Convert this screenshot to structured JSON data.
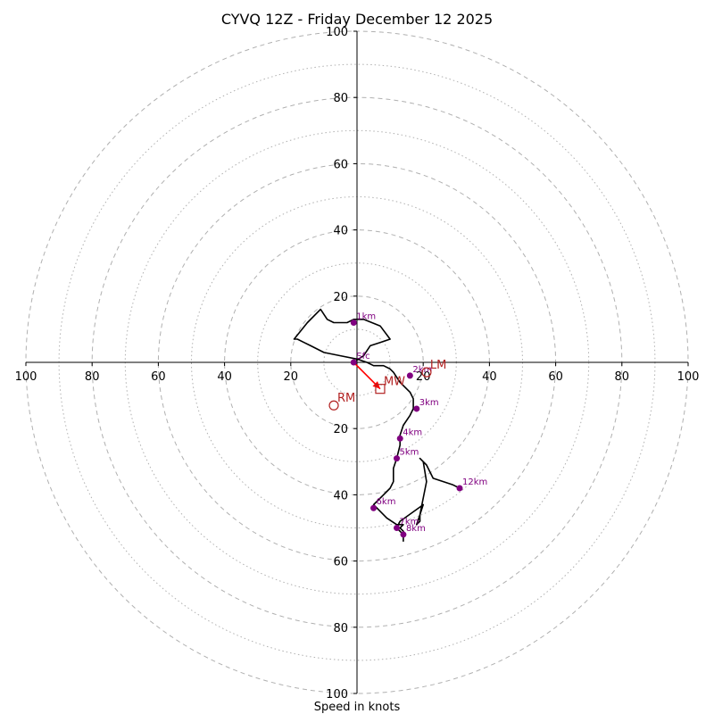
{
  "chart_data": {
    "type": "hodograph",
    "title": "CYVQ 12Z - Friday December 12 2025",
    "xlabel": "Speed in knots",
    "range": [
      -100,
      100
    ],
    "ring_major": [
      20,
      40,
      60,
      80,
      100
    ],
    "ring_minor": [
      10,
      30,
      50,
      70,
      90
    ],
    "x_ticks": [
      {
        "v": -100,
        "label": "100"
      },
      {
        "v": -80,
        "label": "80"
      },
      {
        "v": -60,
        "label": "60"
      },
      {
        "v": -40,
        "label": "40"
      },
      {
        "v": -20,
        "label": "20"
      },
      {
        "v": 20,
        "label": "20"
      },
      {
        "v": 40,
        "label": "40"
      },
      {
        "v": 60,
        "label": "60"
      },
      {
        "v": 80,
        "label": "80"
      },
      {
        "v": 100,
        "label": "100"
      }
    ],
    "y_ticks": [
      {
        "v": 100,
        "label": "100"
      },
      {
        "v": 80,
        "label": "80"
      },
      {
        "v": 60,
        "label": "60"
      },
      {
        "v": 40,
        "label": "40"
      },
      {
        "v": 20,
        "label": "20"
      },
      {
        "v": -20,
        "label": "20"
      },
      {
        "v": -40,
        "label": "40"
      },
      {
        "v": -60,
        "label": "60"
      },
      {
        "v": -80,
        "label": "80"
      },
      {
        "v": -100,
        "label": "100"
      }
    ],
    "trace": [
      [
        -1,
        0
      ],
      [
        2,
        2
      ],
      [
        4,
        5
      ],
      [
        7,
        6
      ],
      [
        10,
        7
      ],
      [
        7,
        11
      ],
      [
        2,
        13
      ],
      [
        -1,
        13
      ],
      [
        -3,
        12
      ],
      [
        -5,
        12
      ],
      [
        -7,
        12
      ],
      [
        -9,
        13
      ],
      [
        -11,
        16
      ],
      [
        -15,
        12
      ],
      [
        -19,
        7
      ],
      [
        -18,
        7
      ],
      [
        -16,
        6
      ],
      [
        -14,
        5
      ],
      [
        -10,
        3
      ],
      [
        -5,
        2
      ],
      [
        0,
        1
      ],
      [
        3,
        0
      ],
      [
        5,
        -1
      ],
      [
        8,
        -1
      ],
      [
        10,
        -2
      ],
      [
        11,
        -3
      ],
      [
        13,
        -6
      ],
      [
        15,
        -8
      ],
      [
        16,
        -9
      ],
      [
        17,
        -11
      ],
      [
        17,
        -12
      ],
      [
        17,
        -14
      ],
      [
        16,
        -16
      ],
      [
        14,
        -19
      ],
      [
        13,
        -22
      ],
      [
        13,
        -25
      ],
      [
        12,
        -29
      ],
      [
        11,
        -32
      ],
      [
        11,
        -36
      ],
      [
        10,
        -38
      ],
      [
        8,
        -40
      ],
      [
        5,
        -43
      ],
      [
        6,
        -44
      ],
      [
        9,
        -47
      ],
      [
        12,
        -49
      ],
      [
        14,
        -49
      ],
      [
        13,
        -50
      ],
      [
        14,
        -51
      ],
      [
        14,
        -52
      ],
      [
        14,
        -54
      ],
      [
        14,
        -52
      ],
      [
        12,
        -50
      ],
      [
        13,
        -48
      ],
      [
        20,
        -43
      ],
      [
        19,
        -46
      ],
      [
        19,
        -48
      ],
      [
        18,
        -49
      ],
      [
        19,
        -46
      ],
      [
        20,
        -41
      ],
      [
        21,
        -36
      ],
      [
        20,
        -30
      ],
      [
        19,
        -29
      ],
      [
        21,
        -31
      ],
      [
        23,
        -35
      ],
      [
        29,
        -37
      ],
      [
        31,
        -38
      ]
    ],
    "height_markers": [
      {
        "label": "Sfc",
        "u": -1,
        "v": 0
      },
      {
        "label": "1km",
        "u": -1,
        "v": 12
      },
      {
        "label": "2km",
        "u": 16,
        "v": -4
      },
      {
        "label": "3km",
        "u": 18,
        "v": -14
      },
      {
        "label": "4km",
        "u": 13,
        "v": -23
      },
      {
        "label": "5km",
        "u": 12,
        "v": -29
      },
      {
        "label": "6km",
        "u": 5,
        "v": -44
      },
      {
        "label": "7km",
        "u": 12,
        "v": -50
      },
      {
        "label": "8km",
        "u": 14,
        "v": -52
      },
      {
        "label": "12km",
        "u": 31,
        "v": -38
      }
    ],
    "motion_markers": [
      {
        "label": "LM",
        "u": 21,
        "v": -3,
        "shape": "circle"
      },
      {
        "label": "RM",
        "u": -7,
        "v": -13,
        "shape": "circle"
      },
      {
        "label": "MW",
        "u": 7,
        "v": -8,
        "shape": "square"
      }
    ],
    "mean_wind_vector": {
      "from": [
        -1,
        0
      ],
      "to": [
        7,
        -8
      ]
    },
    "colors": {
      "trace": "#000000",
      "marker": "#800080",
      "motion": "#b22222",
      "vector": "#ff0000",
      "ring": "#b0b0b0"
    }
  }
}
